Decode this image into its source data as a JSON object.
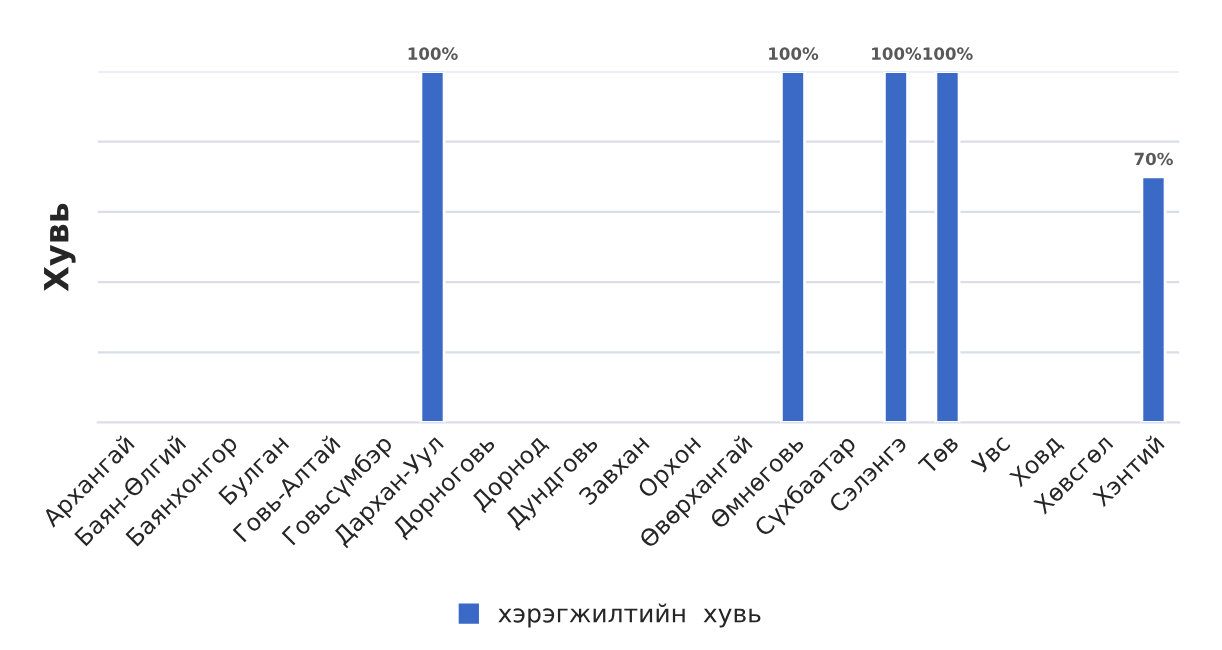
{
  "chart_data": {
    "type": "bar",
    "ylabel": "Хувь",
    "categories": [
      "Архангай",
      "Баян-Өлгий",
      "Баянхонгор",
      "Булган",
      "Говь-Алтай",
      "Говьсүмбэр",
      "Дархан-Уул",
      "Дорноговь",
      "Дорнод",
      "Дундговь",
      "Завхан",
      "Орхон",
      "Өвөрхангай",
      "Өмнөговь",
      "Сүхбаатар",
      "Сэлэнгэ",
      "Төв",
      "Увс",
      "Ховд",
      "Хөвсгөл",
      "Хэнтий"
    ],
    "series": [
      {
        "name": "хэрэгжилтийн  хувь",
        "color": "#3a69c6",
        "values": [
          null,
          null,
          null,
          null,
          null,
          null,
          100,
          null,
          null,
          null,
          null,
          null,
          null,
          100,
          null,
          100,
          100,
          null,
          null,
          null,
          70
        ],
        "value_labels": [
          null,
          null,
          null,
          null,
          null,
          null,
          "100%",
          null,
          null,
          null,
          null,
          null,
          null,
          "100%",
          null,
          "100%",
          "100%",
          null,
          null,
          null,
          "70%"
        ]
      }
    ],
    "ylim": [
      0,
      100
    ],
    "yticks": [
      {
        "value": 0,
        "label": null
      },
      {
        "value": 20,
        "label": null
      },
      {
        "value": 40,
        "label": null
      },
      {
        "value": 60,
        "label": null
      },
      {
        "value": 80,
        "label": null
      },
      {
        "value": 100,
        "label": null
      }
    ],
    "grid": "y",
    "legend": "bottom",
    "tick_labels": "x"
  }
}
